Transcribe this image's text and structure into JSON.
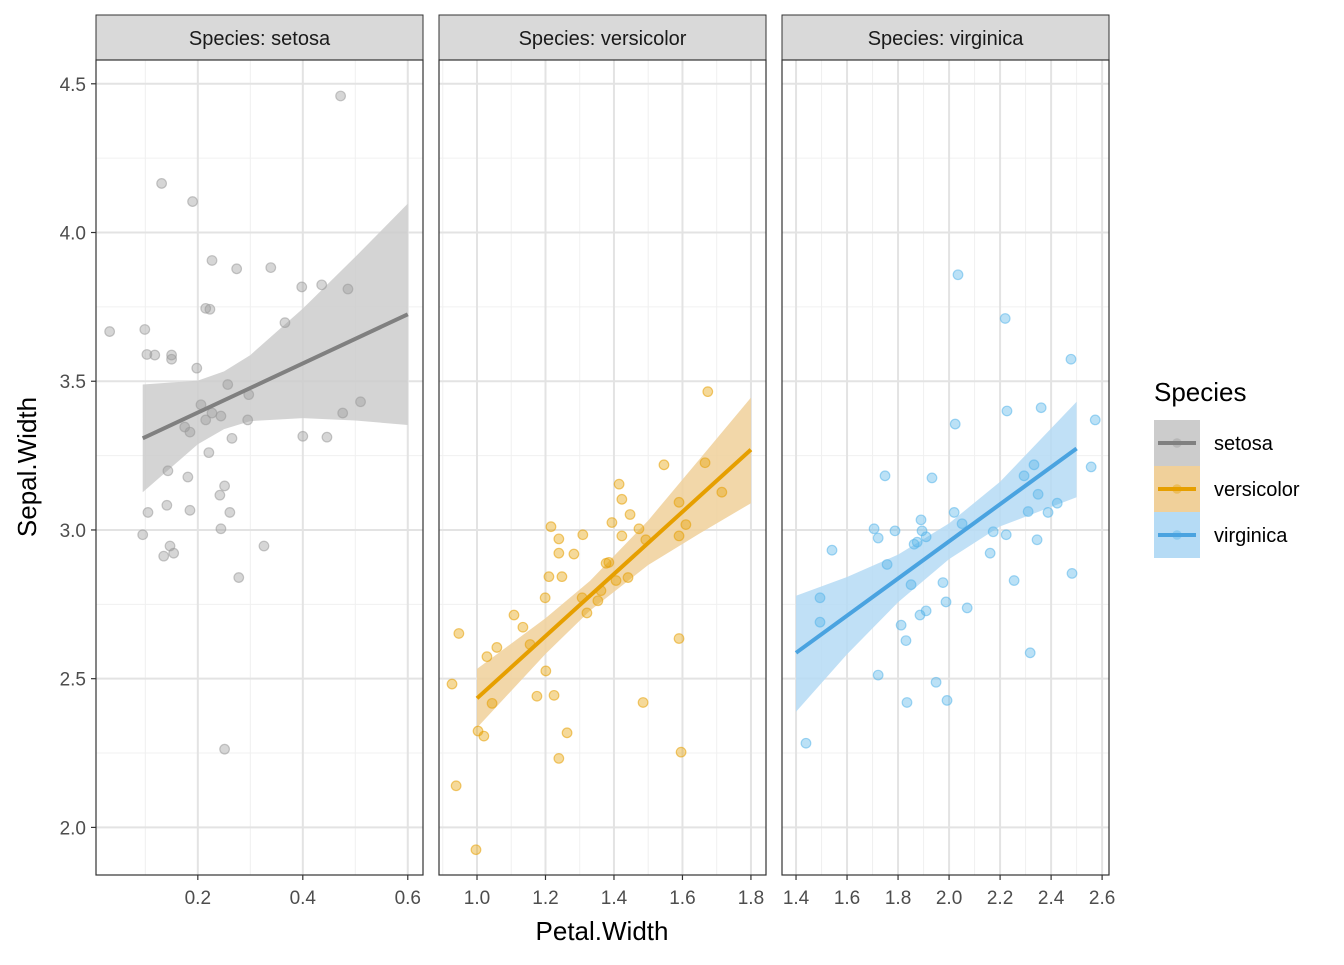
{
  "chart_data": {
    "type": "scatter",
    "xlabel": "Petal.Width",
    "ylabel": "Sepal.Width",
    "ylim": [
      1.84,
      4.58
    ],
    "y_ticks": [
      2.0,
      2.5,
      3.0,
      3.5,
      4.0,
      4.5
    ],
    "y_tick_labels": [
      "2.0",
      "2.5",
      "3.0",
      "3.5",
      "4.0",
      "4.5"
    ],
    "grid": true,
    "legend": {
      "title": "Species",
      "placement": "right",
      "entries": [
        "setosa",
        "versicolor",
        "virginica"
      ]
    },
    "panels": [
      {
        "strip": "Species: setosa",
        "series": "setosa",
        "color": "#808080",
        "point_color": "#999999",
        "band_color": "#cccccc",
        "xlim": [
          0.006,
          0.629
        ],
        "x_ticks": [
          0.2,
          0.4,
          0.6
        ],
        "x_tick_labels": [
          "0.2",
          "0.4",
          "0.6"
        ],
        "x_minor": [
          0.1,
          0.3,
          0.5
        ],
        "fit": [
          [
            0.095,
            3.308
          ],
          [
            0.6,
            3.725
          ]
        ],
        "ribbon": {
          "x": [
            0.095,
            0.2,
            0.25,
            0.3,
            0.4,
            0.5,
            0.6
          ],
          "lower": [
            3.127,
            3.288,
            3.339,
            3.366,
            3.376,
            3.368,
            3.353
          ],
          "upper": [
            3.489,
            3.502,
            3.533,
            3.588,
            3.744,
            3.918,
            4.097
          ]
        },
        "points": [
          [
            0.032,
            3.667
          ],
          [
            0.099,
            3.674
          ],
          [
            0.103,
            3.59
          ],
          [
            0.118,
            3.588
          ],
          [
            0.15,
            3.588
          ],
          [
            0.15,
            3.574
          ],
          [
            0.131,
            4.165
          ],
          [
            0.19,
            4.104
          ],
          [
            0.227,
            3.906
          ],
          [
            0.215,
            3.745
          ],
          [
            0.223,
            3.742
          ],
          [
            0.274,
            3.878
          ],
          [
            0.339,
            3.882
          ],
          [
            0.398,
            3.817
          ],
          [
            0.436,
            3.824
          ],
          [
            0.486,
            3.81
          ],
          [
            0.366,
            3.697
          ],
          [
            0.472,
            4.459
          ],
          [
            0.198,
            3.544
          ],
          [
            0.257,
            3.489
          ],
          [
            0.206,
            3.421
          ],
          [
            0.297,
            3.455
          ],
          [
            0.227,
            3.393
          ],
          [
            0.215,
            3.37
          ],
          [
            0.244,
            3.383
          ],
          [
            0.175,
            3.346
          ],
          [
            0.185,
            3.329
          ],
          [
            0.295,
            3.37
          ],
          [
            0.265,
            3.308
          ],
          [
            0.221,
            3.26
          ],
          [
            0.4,
            3.315
          ],
          [
            0.446,
            3.312
          ],
          [
            0.476,
            3.393
          ],
          [
            0.51,
            3.431
          ],
          [
            0.143,
            3.199
          ],
          [
            0.181,
            3.178
          ],
          [
            0.251,
            3.148
          ],
          [
            0.242,
            3.117
          ],
          [
            0.141,
            3.083
          ],
          [
            0.105,
            3.059
          ],
          [
            0.185,
            3.066
          ],
          [
            0.261,
            3.059
          ],
          [
            0.244,
            3.004
          ],
          [
            0.095,
            2.984
          ],
          [
            0.147,
            2.946
          ],
          [
            0.154,
            2.922
          ],
          [
            0.135,
            2.912
          ],
          [
            0.326,
            2.946
          ],
          [
            0.278,
            2.84
          ],
          [
            0.251,
            2.263
          ]
        ]
      },
      {
        "strip": "Species: versicolor",
        "series": "versicolor",
        "color": "#E69F00",
        "point_color": "#E69F00",
        "band_color": "#F0D09A",
        "xlim": [
          0.889,
          1.844
        ],
        "x_ticks": [
          1.0,
          1.2,
          1.4,
          1.6,
          1.8
        ],
        "x_tick_labels": [
          "1.0",
          "1.2",
          "1.4",
          "1.6",
          "1.8"
        ],
        "x_minor": [
          0.9,
          1.1,
          1.3,
          1.5,
          1.7
        ],
        "fit": [
          [
            1.0,
            2.434
          ],
          [
            1.8,
            3.27
          ]
        ],
        "ribbon": {
          "x": [
            1.0,
            1.2,
            1.33,
            1.5,
            1.65,
            1.8
          ],
          "lower": [
            2.335,
            2.583,
            2.729,
            2.882,
            2.988,
            3.09
          ],
          "upper": [
            2.533,
            2.703,
            2.829,
            3.032,
            3.238,
            3.445
          ]
        },
        "points": [
          [
            0.927,
            2.482
          ],
          [
            0.947,
            2.652
          ],
          [
            0.939,
            2.14
          ],
          [
            0.997,
            1.925
          ],
          [
            1.003,
            2.324
          ],
          [
            1.02,
            2.307
          ],
          [
            1.029,
            2.574
          ],
          [
            1.044,
            2.417
          ],
          [
            1.058,
            2.605
          ],
          [
            1.108,
            2.714
          ],
          [
            1.134,
            2.673
          ],
          [
            1.155,
            2.615
          ],
          [
            1.175,
            2.441
          ],
          [
            1.199,
            2.772
          ],
          [
            1.201,
            2.526
          ],
          [
            1.21,
            2.843
          ],
          [
            1.216,
            3.011
          ],
          [
            1.225,
            2.444
          ],
          [
            1.239,
            2.922
          ],
          [
            1.239,
            2.97
          ],
          [
            1.239,
            2.232
          ],
          [
            1.248,
            2.843
          ],
          [
            1.263,
            2.318
          ],
          [
            1.283,
            2.919
          ],
          [
            1.309,
            2.984
          ],
          [
            1.307,
            2.772
          ],
          [
            1.321,
            2.721
          ],
          [
            1.353,
            2.762
          ],
          [
            1.362,
            2.796
          ],
          [
            1.377,
            2.888
          ],
          [
            1.385,
            2.891
          ],
          [
            1.394,
            3.025
          ],
          [
            1.406,
            2.83
          ],
          [
            1.415,
            3.154
          ],
          [
            1.423,
            3.103
          ],
          [
            1.423,
            2.98
          ],
          [
            1.441,
            2.84
          ],
          [
            1.447,
            3.052
          ],
          [
            1.473,
            3.004
          ],
          [
            1.485,
            2.42
          ],
          [
            1.493,
            2.967
          ],
          [
            1.546,
            3.219
          ],
          [
            1.59,
            2.635
          ],
          [
            1.59,
            3.093
          ],
          [
            1.59,
            2.98
          ],
          [
            1.596,
            2.253
          ],
          [
            1.61,
            3.018
          ],
          [
            1.666,
            3.226
          ],
          [
            1.674,
            3.465
          ],
          [
            1.715,
            3.127
          ]
        ]
      },
      {
        "strip": "Species: virginica",
        "series": "virginica",
        "color": "#4AA3E0",
        "point_color": "#56B4E9",
        "band_color": "#B5DBF5",
        "xlim": [
          1.345,
          2.627
        ],
        "x_ticks": [
          1.4,
          1.6,
          1.8,
          2.0,
          2.2,
          2.4,
          2.6
        ],
        "x_tick_labels": [
          "1.4",
          "1.6",
          "1.8",
          "2.0",
          "2.2",
          "2.4",
          "2.6"
        ],
        "x_minor": [
          1.5,
          1.7,
          1.9,
          2.1,
          2.3,
          2.5
        ],
        "fit": [
          [
            1.4,
            2.587
          ],
          [
            2.5,
            3.274
          ]
        ],
        "ribbon": {
          "x": [
            1.4,
            1.6,
            1.8,
            2.0,
            2.2,
            2.5
          ],
          "lower": [
            2.389,
            2.582,
            2.757,
            2.902,
            3.012,
            3.11
          ],
          "upper": [
            2.779,
            2.842,
            2.917,
            3.022,
            3.162,
            3.431
          ]
        },
        "points": [
          [
            1.439,
            2.283
          ],
          [
            1.494,
            2.772
          ],
          [
            1.494,
            2.69
          ],
          [
            1.541,
            2.932
          ],
          [
            1.706,
            3.004
          ],
          [
            1.722,
            2.973
          ],
          [
            1.722,
            2.512
          ],
          [
            1.749,
            3.182
          ],
          [
            1.757,
            2.884
          ],
          [
            1.788,
            2.997
          ],
          [
            1.812,
            2.68
          ],
          [
            1.831,
            2.628
          ],
          [
            1.835,
            2.42
          ],
          [
            1.851,
            2.816
          ],
          [
            1.863,
            2.952
          ],
          [
            1.875,
            2.959
          ],
          [
            1.89,
            3.034
          ],
          [
            1.894,
            2.997
          ],
          [
            1.886,
            2.714
          ],
          [
            1.91,
            2.728
          ],
          [
            1.91,
            2.977
          ],
          [
            1.933,
            3.175
          ],
          [
            1.949,
            2.488
          ],
          [
            1.976,
            2.823
          ],
          [
            1.988,
            2.758
          ],
          [
            1.992,
            2.427
          ],
          [
            2.02,
            3.059
          ],
          [
            2.024,
            3.356
          ],
          [
            2.035,
            3.858
          ],
          [
            2.051,
            3.021
          ],
          [
            2.071,
            2.738
          ],
          [
            2.161,
            2.922
          ],
          [
            2.173,
            2.994
          ],
          [
            2.22,
            3.711
          ],
          [
            2.227,
            3.4
          ],
          [
            2.224,
            2.984
          ],
          [
            2.255,
            2.83
          ],
          [
            2.294,
            3.182
          ],
          [
            2.31,
            3.062
          ],
          [
            2.318,
            2.587
          ],
          [
            2.333,
            3.219
          ],
          [
            2.345,
            2.967
          ],
          [
            2.349,
            3.12
          ],
          [
            2.361,
            3.411
          ],
          [
            2.388,
            3.059
          ],
          [
            2.424,
            3.09
          ],
          [
            2.478,
            3.574
          ],
          [
            2.482,
            2.854
          ],
          [
            2.557,
            3.212
          ],
          [
            2.573,
            3.37
          ]
        ]
      }
    ]
  }
}
